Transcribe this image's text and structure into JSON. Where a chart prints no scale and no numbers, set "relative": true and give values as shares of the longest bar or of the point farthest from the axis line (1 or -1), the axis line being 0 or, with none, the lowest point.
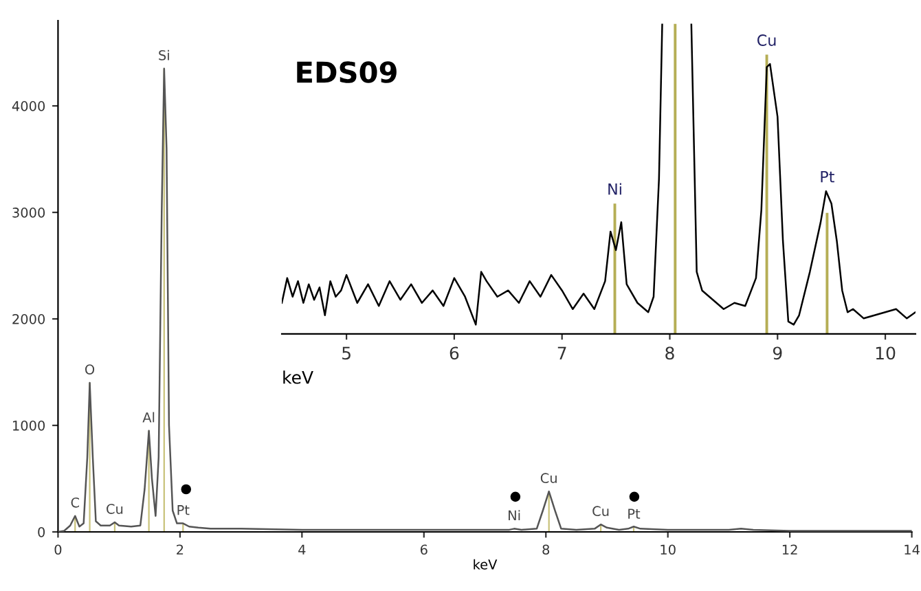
{
  "chart_data": [
    {
      "type": "line",
      "xlabel": "keV",
      "xlim": [
        0,
        14
      ],
      "xticks": [
        0,
        2,
        4,
        6,
        8,
        10,
        12,
        14
      ],
      "ylim": [
        0,
        4800
      ],
      "yticks": [
        0,
        1000,
        2000,
        3000,
        4000
      ],
      "grid": false,
      "series": [
        {
          "type": "bar",
          "color": "#c8c27a",
          "x": [
            0.28,
            0.52,
            0.93,
            1.49,
            1.74,
            2.05,
            7.48,
            8.05,
            8.9,
            9.44
          ],
          "values": [
            150,
            1400,
            90,
            950,
            4350,
            80,
            null,
            380,
            70,
            50
          ]
        },
        {
          "color": "#555555",
          "x": [
            0,
            0.1,
            0.2,
            0.28,
            0.35,
            0.42,
            0.48,
            0.52,
            0.57,
            0.62,
            0.7,
            0.85,
            0.93,
            1.0,
            1.2,
            1.35,
            1.42,
            1.49,
            1.54,
            1.6,
            1.65,
            1.7,
            1.74,
            1.78,
            1.82,
            1.88,
            1.95,
            2.05,
            2.15,
            2.3,
            2.5,
            3,
            4,
            5,
            6,
            7,
            7.4,
            7.48,
            7.6,
            7.85,
            7.95,
            8.05,
            8.15,
            8.25,
            8.5,
            8.8,
            8.9,
            9.0,
            9.2,
            9.35,
            9.44,
            9.55,
            10,
            11,
            11.2,
            11.4,
            12,
            13,
            14
          ],
          "values": [
            0,
            10,
            60,
            150,
            50,
            80,
            700,
            1400,
            700,
            100,
            60,
            60,
            90,
            60,
            50,
            60,
            400,
            950,
            500,
            150,
            700,
            3000,
            4350,
            3600,
            1000,
            200,
            80,
            80,
            50,
            40,
            30,
            30,
            20,
            20,
            20,
            20,
            20,
            30,
            20,
            30,
            200,
            380,
            200,
            30,
            20,
            30,
            70,
            40,
            20,
            30,
            50,
            30,
            20,
            20,
            30,
            20,
            10,
            10,
            10
          ]
        },
        {
          "type": "scatter",
          "marker": "circle",
          "color": "#000000",
          "x": [
            2.1,
            7.5,
            9.45
          ],
          "values": [
            400,
            330,
            330
          ]
        }
      ],
      "annotations": [
        {
          "text": "C",
          "x": 0.28,
          "y": 150
        },
        {
          "text": "O",
          "x": 0.52,
          "y": 1400
        },
        {
          "text": "Cu",
          "x": 0.93,
          "y": 90
        },
        {
          "text": "Al",
          "x": 1.49,
          "y": 950
        },
        {
          "text": "Si",
          "x": 1.74,
          "y": 4350
        },
        {
          "text": "Pt",
          "x": 2.05,
          "y": 80
        },
        {
          "text": "Ni",
          "x": 7.48,
          "y": 30
        },
        {
          "text": "Cu",
          "x": 8.05,
          "y": 380
        },
        {
          "text": "Cu",
          "x": 8.9,
          "y": 70
        },
        {
          "text": "Pt",
          "x": 9.44,
          "y": 45
        }
      ]
    },
    {
      "type": "line",
      "relative": true,
      "xlabel": "keV",
      "xlim": [
        4.4,
        10.28
      ],
      "xticks": [
        5,
        6,
        7,
        8,
        9,
        10
      ],
      "grid": false,
      "tick_labels": "x",
      "series": [
        {
          "type": "bar",
          "color": "#b5ae55",
          "x": [
            7.49,
            8.05,
            8.9,
            9.46
          ],
          "values": [
            0.42,
            1,
            0.9,
            0.39
          ]
        },
        {
          "color": "#000000",
          "x": [
            4.4,
            4.45,
            4.5,
            4.55,
            4.6,
            4.65,
            4.7,
            4.75,
            4.8,
            4.85,
            4.9,
            4.95,
            5.0,
            5.1,
            5.2,
            5.3,
            5.4,
            5.5,
            5.6,
            5.7,
            5.8,
            5.9,
            6.0,
            6.1,
            6.2,
            6.25,
            6.3,
            6.4,
            6.5,
            6.6,
            6.7,
            6.8,
            6.9,
            7.0,
            7.1,
            7.2,
            7.3,
            7.4,
            7.45,
            7.5,
            7.55,
            7.6,
            7.7,
            7.8,
            7.85,
            7.9,
            7.93,
            8.05,
            8.2,
            8.25,
            8.3,
            8.4,
            8.5,
            8.6,
            8.7,
            8.8,
            8.85,
            8.9,
            8.93,
            9.0,
            9.05,
            9.1,
            9.15,
            9.2,
            9.3,
            9.4,
            9.45,
            9.5,
            9.55,
            9.6,
            9.65,
            9.7,
            9.8,
            9.9,
            10.0,
            10.1,
            10.2,
            10.28
          ],
          "values": [
            0.1,
            0.18,
            0.12,
            0.17,
            0.1,
            0.16,
            0.11,
            0.15,
            0.06,
            0.17,
            0.12,
            0.14,
            0.19,
            0.1,
            0.16,
            0.09,
            0.17,
            0.11,
            0.16,
            0.1,
            0.14,
            0.09,
            0.18,
            0.12,
            0.03,
            0.2,
            0.17,
            0.12,
            0.14,
            0.1,
            0.17,
            0.12,
            0.19,
            0.14,
            0.08,
            0.13,
            0.08,
            0.17,
            0.33,
            0.27,
            0.36,
            0.16,
            0.1,
            0.07,
            0.12,
            0.5,
            1,
            null,
            1,
            0.2,
            0.14,
            0.11,
            0.08,
            0.1,
            0.09,
            0.18,
            0.4,
            0.86,
            0.87,
            0.7,
            0.3,
            0.04,
            0.03,
            0.06,
            0.2,
            0.36,
            0.46,
            0.42,
            0.3,
            0.14,
            0.07,
            0.08,
            0.05,
            0.06,
            0.07,
            0.08,
            0.05,
            0.07
          ]
        }
      ],
      "annotations": [
        "EDS09",
        {
          "text": "Ni",
          "x": 7.49,
          "y": 0.42
        },
        {
          "text": "Cu",
          "x": 8.9,
          "y": 0.9
        },
        {
          "text": "Pt",
          "x": 9.46,
          "y": 0.46
        }
      ]
    }
  ]
}
